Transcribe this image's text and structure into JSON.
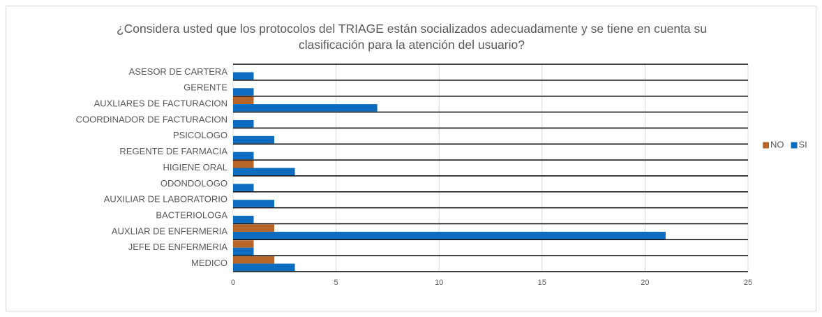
{
  "chart_data": {
    "type": "barh",
    "title": "¿Considera usted que los protocolos del TRIAGE están socializados adecuadamente y se tiene en cuenta su clasificación para la atención del usuario?",
    "categories": [
      "ASESOR DE CARTERA",
      "GERENTE",
      "AUXLIARES DE FACTURACION",
      "COORDINADOR DE FACTURACION",
      "PSICOLOGO",
      "REGENTE DE FARMACIA",
      "HIGIENE ORAL",
      "ODONDOLOGO",
      "AUXILIAR DE LABORATORIO",
      "BACTERIOLOGA",
      "AUXLIAR DE ENFERMERIA",
      "JEFE DE ENFERMERIA",
      "MEDICO"
    ],
    "series": [
      {
        "name": "NO",
        "color": "#b8652a",
        "values": [
          0,
          0,
          1,
          0,
          0,
          0,
          1,
          0,
          0,
          0,
          2,
          1,
          2
        ]
      },
      {
        "name": "SI",
        "color": "#0b6cc0",
        "values": [
          1,
          1,
          7,
          1,
          2,
          1,
          3,
          1,
          2,
          1,
          21,
          1,
          3
        ]
      }
    ],
    "xlim": [
      0,
      25
    ],
    "xticks": [
      0,
      5,
      10,
      15,
      20,
      25
    ],
    "grid": true,
    "legend": "right"
  }
}
